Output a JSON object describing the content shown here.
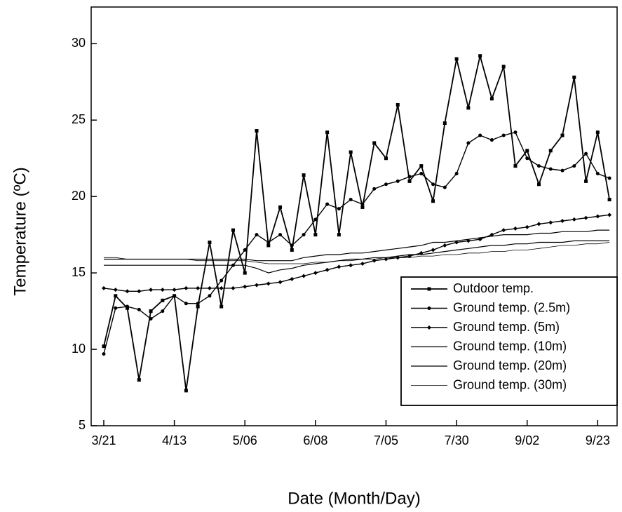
{
  "chart_data": {
    "type": "line",
    "x_label": "Date (Month/Day)",
    "y_label": "Temperature (ºC)",
    "categories": [
      "3/21",
      null,
      null,
      null,
      null,
      null,
      "4/13",
      null,
      null,
      null,
      null,
      null,
      "5/06",
      null,
      null,
      null,
      null,
      null,
      "6/08",
      null,
      null,
      null,
      null,
      null,
      "7/05",
      null,
      null,
      null,
      null,
      null,
      "7/30",
      null,
      null,
      null,
      null,
      null,
      "9/02",
      null,
      null,
      null,
      null,
      null,
      "9/23",
      null
    ],
    "ylim": [
      5,
      32.4
    ],
    "yticks": [
      5,
      10,
      15,
      20,
      25,
      30
    ],
    "legend": "lower right",
    "series": [
      {
        "name": "Outdoor temp.",
        "color": "#000000",
        "marker": "square",
        "width": 1.8,
        "values": [
          10.2,
          13.5,
          12.7,
          8.0,
          12.5,
          13.2,
          13.5,
          7.3,
          12.8,
          17.0,
          12.8,
          17.8,
          15.0,
          24.3,
          16.8,
          19.3,
          16.5,
          21.4,
          17.5,
          24.2,
          17.5,
          22.9,
          19.3,
          23.5,
          22.5,
          26.0,
          21.0,
          22.0,
          19.7,
          24.8,
          29.0,
          25.8,
          29.2,
          26.4,
          28.5,
          22.0,
          23.0,
          20.8,
          23.0,
          24.0,
          27.8,
          21.0,
          24.2,
          19.8
        ]
      },
      {
        "name": "Ground temp. (2.5m)",
        "color": "#000000",
        "marker": "circle",
        "width": 1.4,
        "values": [
          9.7,
          12.7,
          12.8,
          12.6,
          12.0,
          12.5,
          13.5,
          13.0,
          13.0,
          13.5,
          14.5,
          15.5,
          16.5,
          17.5,
          17.0,
          17.5,
          16.8,
          17.5,
          18.5,
          19.5,
          19.2,
          19.8,
          19.5,
          20.5,
          20.8,
          21.0,
          21.3,
          21.5,
          20.8,
          20.6,
          21.5,
          23.5,
          24.0,
          23.7,
          24.0,
          24.2,
          22.5,
          22.0,
          21.8,
          21.7,
          22.0,
          22.8,
          21.5,
          21.2
        ]
      },
      {
        "name": "Ground temp. (5m)",
        "color": "#000000",
        "marker": "diamond",
        "width": 1.4,
        "values": [
          14.0,
          13.9,
          13.8,
          13.8,
          13.9,
          13.9,
          13.9,
          14.0,
          14.0,
          14.0,
          14.0,
          14.0,
          14.1,
          14.2,
          14.3,
          14.4,
          14.6,
          14.8,
          15.0,
          15.2,
          15.4,
          15.5,
          15.6,
          15.8,
          15.9,
          16.0,
          16.1,
          16.3,
          16.5,
          16.8,
          17.0,
          17.1,
          17.2,
          17.5,
          17.8,
          17.9,
          18.0,
          18.2,
          18.3,
          18.4,
          18.5,
          18.6,
          18.7,
          18.8
        ]
      },
      {
        "name": "Ground temp. (10m)",
        "color": "#000000",
        "marker": "none",
        "width": 1.2,
        "values": [
          15.9,
          15.9,
          15.9,
          15.9,
          15.9,
          15.9,
          15.9,
          15.9,
          15.9,
          15.9,
          15.9,
          15.9,
          15.9,
          15.8,
          15.8,
          15.8,
          15.8,
          16.0,
          16.1,
          16.2,
          16.2,
          16.3,
          16.3,
          16.4,
          16.5,
          16.6,
          16.7,
          16.8,
          17.0,
          17.0,
          17.1,
          17.2,
          17.3,
          17.4,
          17.5,
          17.5,
          17.5,
          17.6,
          17.6,
          17.7,
          17.7,
          17.7,
          17.8,
          17.8
        ]
      },
      {
        "name": "Ground temp. (20m)",
        "color": "#000000",
        "marker": "none",
        "width": 1.2,
        "values": [
          15.5,
          15.5,
          15.5,
          15.5,
          15.5,
          15.5,
          15.5,
          15.5,
          15.5,
          15.5,
          15.5,
          15.5,
          15.5,
          15.3,
          15.0,
          15.2,
          15.3,
          15.5,
          15.6,
          15.7,
          15.8,
          15.9,
          15.9,
          16.0,
          16.0,
          16.1,
          16.2,
          16.2,
          16.3,
          16.4,
          16.5,
          16.6,
          16.7,
          16.8,
          16.8,
          16.9,
          16.9,
          17.0,
          17.0,
          17.0,
          17.1,
          17.1,
          17.1,
          17.1
        ]
      },
      {
        "name": "Ground temp. (30m)",
        "color": "#000000",
        "marker": "none",
        "width": 0.8,
        "values": [
          16.0,
          16.0,
          15.9,
          15.9,
          15.9,
          15.9,
          15.9,
          15.9,
          15.8,
          15.8,
          15.8,
          15.8,
          15.8,
          15.7,
          15.6,
          15.6,
          15.6,
          15.6,
          15.7,
          15.7,
          15.8,
          15.8,
          15.9,
          15.9,
          16.0,
          16.0,
          16.0,
          16.1,
          16.1,
          16.2,
          16.2,
          16.3,
          16.3,
          16.4,
          16.4,
          16.5,
          16.5,
          16.6,
          16.7,
          16.8,
          16.8,
          16.9,
          16.9,
          17.0
        ]
      }
    ]
  }
}
